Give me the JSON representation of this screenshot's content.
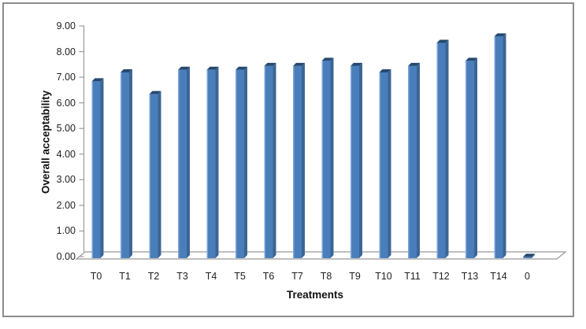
{
  "window": {
    "background_color": "#ffffff",
    "frame_border_color": "#8c8c8c"
  },
  "chart_data": {
    "type": "bar",
    "style": "3d-column",
    "title": "",
    "xlabel": "Treatments",
    "ylabel": "Overall acceptability",
    "categories": [
      "T0",
      "T1",
      "T2",
      "T3",
      "T4",
      "T5",
      "T6",
      "T7",
      "T8",
      "T9",
      "T10",
      "T11",
      "T12",
      "T13",
      "T14",
      "0"
    ],
    "values": [
      6.9,
      7.25,
      6.4,
      7.35,
      7.35,
      7.35,
      7.5,
      7.5,
      7.7,
      7.5,
      7.25,
      7.5,
      8.4,
      7.7,
      8.65,
      0.05
    ],
    "ylim": [
      0,
      9
    ],
    "ytick_step": 1,
    "ytick_labels": [
      "0.00",
      "1.00",
      "2.00",
      "3.00",
      "4.00",
      "5.00",
      "6.00",
      "7.00",
      "8.00",
      "9.00"
    ],
    "grid": false,
    "legend": false,
    "colors": {
      "bar_front": "#4A7EBB",
      "bar_side": "#3B6596",
      "bar_top": "#25496F",
      "bar_highlight": "#7DA7D9",
      "axis": "#999999",
      "floor_fill": "#FFFFFF",
      "text": "#1f1f1f"
    }
  }
}
